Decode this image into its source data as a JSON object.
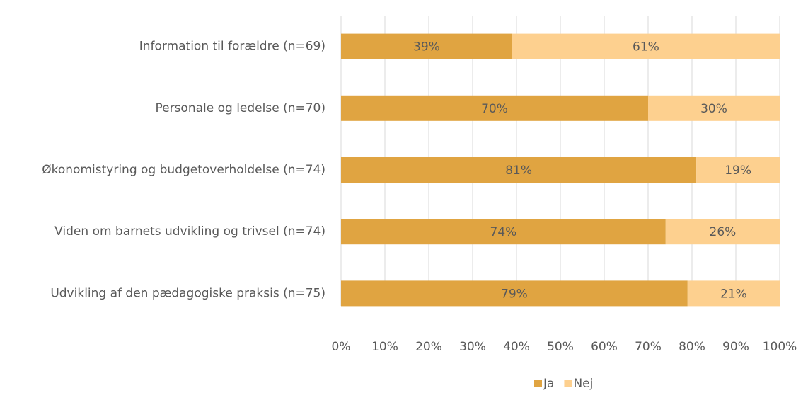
{
  "chart_data": {
    "type": "stacked-bar",
    "categories": [
      "Information til forældre (n=69)",
      "Personale og ledelse (n=70)",
      "Økonomistyring og budgetoverholdelse (n=74)",
      "Viden om barnets udvikling og trivsel (n=74)",
      "Udvikling af den pædagogiske praksis (n=75)"
    ],
    "series": [
      {
        "name": "Ja",
        "color": "#e0a441",
        "values": [
          39,
          70,
          81,
          74,
          79
        ],
        "value_labels": [
          "39%",
          "70%",
          "81%",
          "74%",
          "79%"
        ]
      },
      {
        "name": "Nej",
        "color": "#fdd08f",
        "values": [
          61,
          30,
          19,
          26,
          21
        ],
        "value_labels": [
          "61%",
          "30%",
          "19%",
          "26%",
          "21%"
        ]
      }
    ],
    "xlim": [
      0,
      100
    ],
    "xticks": [
      {
        "value": 0,
        "label": "0%"
      },
      {
        "value": 10,
        "label": "10%"
      },
      {
        "value": 20,
        "label": "20%"
      },
      {
        "value": 30,
        "label": "30%"
      },
      {
        "value": 40,
        "label": "40%"
      },
      {
        "value": 50,
        "label": "50%"
      },
      {
        "value": 60,
        "label": "60%"
      },
      {
        "value": 70,
        "label": "70%"
      },
      {
        "value": 80,
        "label": "80%"
      },
      {
        "value": 90,
        "label": "90%"
      },
      {
        "value": 100,
        "label": "100%"
      }
    ],
    "grid": true,
    "legend": "bottom"
  }
}
